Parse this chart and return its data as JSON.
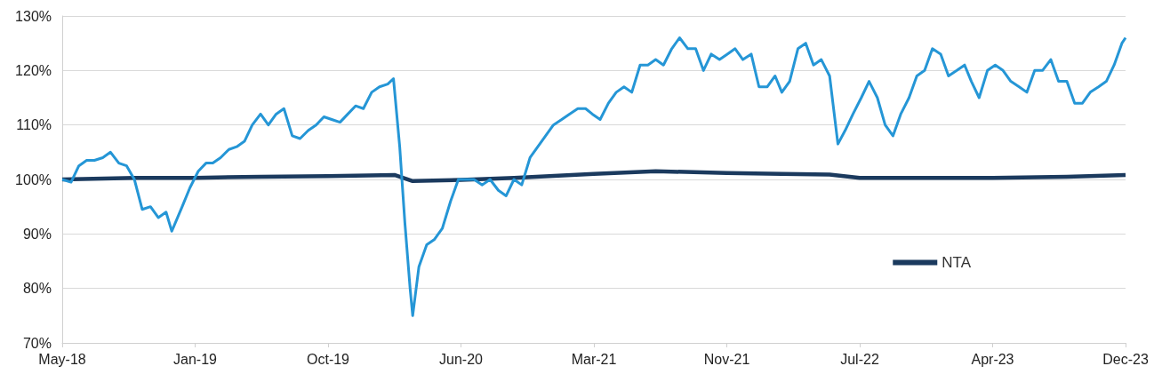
{
  "chart_data": {
    "type": "line",
    "xlim": [
      "2018-05-15",
      "2023-12-23"
    ],
    "xticks": [
      {
        "value": "2018-05-15",
        "label": "May-18"
      },
      {
        "value": "2019-01-26",
        "label": "Jan-19"
      },
      {
        "value": "2019-10-09",
        "label": "Oct-19"
      },
      {
        "value": "2020-06-21",
        "label": "Jun-20"
      },
      {
        "value": "2021-03-04",
        "label": "Mar-21"
      },
      {
        "value": "2021-11-15",
        "label": "Nov-21"
      },
      {
        "value": "2022-07-29",
        "label": "Jul-22"
      },
      {
        "value": "2023-04-11",
        "label": "Apr-23"
      },
      {
        "value": "2023-12-23",
        "label": "Dec-23"
      }
    ],
    "ylim": [
      70,
      130
    ],
    "yticks": [
      {
        "value": 70,
        "label": "70%"
      },
      {
        "value": 80,
        "label": "80%"
      },
      {
        "value": 90,
        "label": "90%"
      },
      {
        "value": 100,
        "label": "100%"
      },
      {
        "value": 110,
        "label": "110%"
      },
      {
        "value": 120,
        "label": "120%"
      },
      {
        "value": 130,
        "label": "130%"
      }
    ],
    "grid": "y",
    "legend": "bottom right",
    "marker": "none",
    "line_style": "solid",
    "series": [
      {
        "name": "NTA",
        "color": "#1b3a5e",
        "x": [
          "2018-05-15",
          "2018-10-01",
          "2019-01-26",
          "2019-06-01",
          "2019-10-09",
          "2020-02-15",
          "2020-03-20",
          "2020-06-21",
          "2020-10-01",
          "2021-03-04",
          "2021-07-01",
          "2021-11-15",
          "2022-03-01",
          "2022-06-01",
          "2022-07-29",
          "2023-04-11",
          "2023-09-01",
          "2023-12-23"
        ],
        "values": [
          100,
          100.3,
          100.3,
          100.5,
          100.6,
          100.8,
          99.7,
          99.9,
          100.3,
          101,
          101.5,
          101.2,
          101,
          100.9,
          100.3,
          100.3,
          100.5,
          100.8
        ]
      },
      {
        "color": "#2596d6",
        "x": [
          "2018-05-15",
          "2018-06-01",
          "2018-06-16",
          "2018-07-01",
          "2018-07-16",
          "2018-08-01",
          "2018-08-16",
          "2018-09-01",
          "2018-09-16",
          "2018-10-01",
          "2018-10-16",
          "2018-11-01",
          "2018-11-16",
          "2018-12-01",
          "2018-12-12",
          "2019-01-01",
          "2019-01-16",
          "2019-02-01",
          "2019-02-16",
          "2019-03-01",
          "2019-03-16",
          "2019-04-01",
          "2019-04-16",
          "2019-05-01",
          "2019-05-16",
          "2019-06-01",
          "2019-06-16",
          "2019-07-01",
          "2019-07-16",
          "2019-08-01",
          "2019-08-16",
          "2019-09-01",
          "2019-09-16",
          "2019-10-01",
          "2019-10-16",
          "2019-11-01",
          "2019-11-16",
          "2019-12-01",
          "2019-12-16",
          "2020-01-01",
          "2020-01-16",
          "2020-02-01",
          "2020-02-12",
          "2020-02-24",
          "2020-03-05",
          "2020-03-15",
          "2020-03-20",
          "2020-04-01",
          "2020-04-16",
          "2020-05-01",
          "2020-05-16",
          "2020-06-01",
          "2020-06-16",
          "2020-07-01",
          "2020-07-16",
          "2020-08-01",
          "2020-08-16",
          "2020-09-01",
          "2020-09-16",
          "2020-10-01",
          "2020-10-16",
          "2020-11-01",
          "2020-11-16",
          "2020-12-01",
          "2020-12-16",
          "2021-01-01",
          "2021-01-16",
          "2021-02-01",
          "2021-02-16",
          "2021-03-01",
          "2021-03-16",
          "2021-04-01",
          "2021-04-16",
          "2021-05-01",
          "2021-05-16",
          "2021-06-01",
          "2021-06-16",
          "2021-07-01",
          "2021-07-16",
          "2021-08-01",
          "2021-08-16",
          "2021-09-01",
          "2021-09-16",
          "2021-10-01",
          "2021-10-16",
          "2021-11-01",
          "2021-11-16",
          "2021-12-01",
          "2021-12-16",
          "2022-01-01",
          "2022-01-16",
          "2022-02-01",
          "2022-02-16",
          "2022-03-01",
          "2022-03-16",
          "2022-04-01",
          "2022-04-16",
          "2022-05-01",
          "2022-05-16",
          "2022-06-01",
          "2022-06-17",
          "2022-07-01",
          "2022-07-16",
          "2022-08-01",
          "2022-08-16",
          "2022-09-01",
          "2022-09-16",
          "2022-10-01",
          "2022-10-16",
          "2022-11-01",
          "2022-11-16",
          "2022-12-01",
          "2022-12-16",
          "2023-01-01",
          "2023-01-16",
          "2023-02-01",
          "2023-02-16",
          "2023-03-01",
          "2023-03-16",
          "2023-04-01",
          "2023-04-16",
          "2023-05-01",
          "2023-05-16",
          "2023-06-01",
          "2023-06-16",
          "2023-07-01",
          "2023-07-16",
          "2023-08-01",
          "2023-08-16",
          "2023-09-01",
          "2023-09-16",
          "2023-10-01",
          "2023-10-16",
          "2023-11-01",
          "2023-11-16",
          "2023-12-01",
          "2023-12-16",
          "2023-12-23"
        ],
        "values": [
          100,
          99.5,
          102.5,
          103.5,
          103.5,
          104,
          105,
          103,
          102.5,
          100,
          94.5,
          95,
          93,
          94,
          90.5,
          95,
          98.5,
          101.5,
          103,
          103,
          104,
          105.5,
          106,
          107,
          110,
          112,
          110,
          112,
          113,
          108,
          107.5,
          109,
          110,
          111.5,
          111,
          110.5,
          112,
          113.5,
          113,
          116,
          117,
          117.5,
          118.5,
          106,
          92,
          80,
          75,
          84,
          88,
          89,
          91,
          96,
          100,
          100,
          100,
          99,
          100,
          98,
          97,
          100,
          99,
          104,
          106,
          108,
          110,
          111,
          112,
          113,
          113,
          112,
          111,
          114,
          116,
          117,
          116,
          121,
          121,
          122,
          121,
          124,
          126,
          124,
          124,
          120,
          123,
          122,
          123,
          124,
          122,
          123,
          117,
          117,
          119,
          116,
          118,
          124,
          125,
          121,
          122,
          119,
          106.5,
          109,
          112,
          115,
          118,
          115,
          110,
          108,
          112,
          115,
          119,
          120,
          124,
          123,
          119,
          120,
          121,
          118,
          115,
          120,
          121,
          120,
          118,
          117,
          116,
          120,
          120,
          122,
          118,
          118,
          114,
          114,
          116,
          117,
          118,
          121,
          125,
          126
        ]
      }
    ]
  }
}
